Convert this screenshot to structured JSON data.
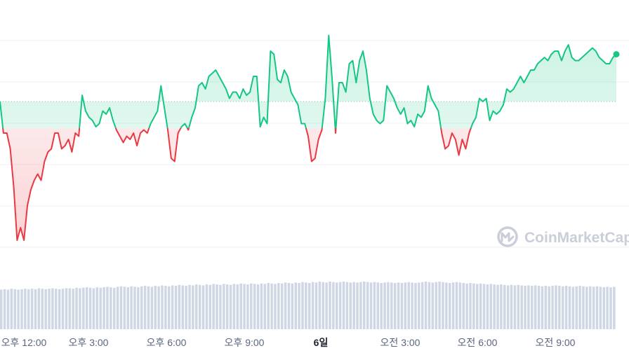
{
  "chart_data": {
    "type": "line",
    "baseline": 0,
    "ylim": [
      -5,
      3
    ],
    "grid": true,
    "x_tick_labels": [
      "오후 12:00",
      "오후 3:00",
      "오후 6:00",
      "오후 9:00",
      "6일",
      "오전 3:00",
      "오전 6:00",
      "오전 9:00"
    ],
    "x_tick_bold": [
      false,
      false,
      false,
      false,
      true,
      false,
      false,
      false
    ],
    "price": [
      0.0,
      -1.0,
      -1.0,
      -1.5,
      -2.7,
      -4.4,
      -4.0,
      -4.4,
      -3.3,
      -2.8,
      -2.5,
      -2.3,
      -2.5,
      -1.9,
      -1.6,
      -1.5,
      -1.0,
      -1.0,
      -1.5,
      -1.4,
      -1.2,
      -1.6,
      -1.0,
      -1.1,
      0.2,
      -0.3,
      -0.5,
      -0.6,
      -0.8,
      -0.7,
      -0.3,
      -0.4,
      -0.2,
      -0.6,
      -0.9,
      -1.1,
      -1.3,
      -1.1,
      -1.2,
      -1.0,
      -1.4,
      -1.0,
      -0.9,
      -1.0,
      -0.7,
      -0.5,
      -0.3,
      0.5,
      -0.2,
      -0.9,
      -1.8,
      -1.9,
      -1.0,
      -0.8,
      -0.7,
      -0.9,
      -0.5,
      -0.2,
      0.5,
      0.6,
      0.4,
      0.8,
      0.9,
      1.0,
      0.8,
      0.6,
      0.4,
      0.1,
      0.3,
      0.3,
      0.1,
      0.4,
      0.2,
      0.3,
      0.8,
      0.8,
      -0.8,
      -0.5,
      -0.7,
      1.6,
      1.5,
      0.7,
      0.6,
      1.0,
      0.8,
      0.3,
      0.1,
      -0.1,
      -0.7,
      -0.7,
      -1.1,
      -1.9,
      -1.8,
      -1.2,
      -0.9,
      0.1,
      2.1,
      0.7,
      -1.0,
      0.6,
      0.6,
      0.3,
      1.2,
      1.3,
      0.6,
      1.3,
      1.6,
      1.0,
      0.1,
      -0.4,
      -0.6,
      -0.7,
      -0.6,
      0.5,
      0.3,
      0.1,
      -0.2,
      -0.4,
      -0.2,
      -0.7,
      -0.6,
      -0.8,
      -0.4,
      -0.5,
      -0.3,
      0.5,
      0.1,
      -0.1,
      -0.3,
      -1.0,
      -1.5,
      -1.4,
      -1.0,
      -1.2,
      -1.7,
      -1.2,
      -1.5,
      -1.0,
      -0.7,
      -0.5,
      0.1,
      0.0,
      0.1,
      -0.6,
      -0.3,
      -0.4,
      -0.3,
      -0.1,
      0.4,
      0.3,
      0.4,
      0.6,
      0.8,
      0.6,
      0.8,
      1.0,
      1.0,
      1.2,
      1.3,
      1.4,
      1.3,
      1.5,
      1.6,
      1.6,
      1.3,
      1.6,
      1.8,
      1.4,
      1.3,
      1.3,
      1.4,
      1.5,
      1.6,
      1.7,
      1.6,
      1.4,
      1.3,
      1.2,
      1.2,
      1.4,
      1.5
    ],
    "volume": [
      0.83,
      0.84,
      0.83,
      0.85,
      0.84,
      0.83,
      0.84,
      0.85,
      0.84,
      0.85,
      0.84,
      0.86,
      0.85,
      0.84,
      0.85,
      0.86,
      0.85,
      0.84,
      0.85,
      0.86,
      0.86,
      0.85,
      0.87,
      0.86,
      0.87,
      0.88,
      0.87,
      0.86,
      0.88,
      0.87,
      0.88,
      0.89,
      0.88,
      0.87,
      0.89,
      0.9,
      0.89,
      0.88,
      0.9,
      0.89,
      0.88,
      0.9,
      0.91,
      0.9,
      0.89,
      0.91,
      0.9,
      0.92,
      0.91,
      0.9,
      0.92,
      0.91,
      0.93,
      0.92,
      0.91,
      0.93,
      0.92,
      0.94,
      0.93,
      0.92,
      0.94,
      0.93,
      0.95,
      0.94,
      0.93,
      0.95,
      0.94,
      0.93,
      0.95,
      0.94,
      0.96,
      0.95,
      0.94,
      0.96,
      0.95,
      0.94,
      0.96,
      0.95,
      0.97,
      0.96,
      0.95,
      0.97,
      0.96,
      0.98,
      0.97,
      0.96,
      0.98,
      0.97,
      0.99,
      0.98,
      0.97,
      0.99,
      0.98,
      1.0,
      0.99,
      0.98,
      1.0,
      0.99,
      0.98,
      0.99,
      1.0,
      0.99,
      0.98,
      0.99,
      0.98,
      0.99,
      1.0,
      0.99,
      0.98,
      0.99,
      0.98,
      0.97,
      0.98,
      0.99,
      0.98,
      0.97,
      0.98,
      0.97,
      0.98,
      0.99,
      0.98,
      0.97,
      0.98,
      0.99,
      1.0,
      0.99,
      0.98,
      0.99,
      1.0,
      0.99,
      0.98,
      0.97,
      0.98,
      0.99,
      0.98,
      0.97,
      0.96,
      0.97,
      0.96,
      0.95,
      0.96,
      0.95,
      0.94,
      0.95,
      0.94,
      0.93,
      0.94,
      0.93,
      0.92,
      0.93,
      0.92,
      0.93,
      0.92,
      0.91,
      0.92,
      0.91,
      0.92,
      0.91,
      0.9,
      0.91,
      0.9,
      0.91,
      0.92,
      0.91,
      0.9,
      0.91,
      0.9,
      0.89,
      0.9,
      0.91,
      0.9,
      0.89,
      0.9,
      0.89,
      0.9,
      0.89,
      0.88,
      0.89,
      0.88,
      0.89
    ]
  },
  "colors": {
    "up": "#16c784",
    "down": "#ea3943",
    "grid": "#eff2f5",
    "baseline": "#a6b0c3",
    "volume": "#cfd6e4",
    "axis_text": "#58667e"
  },
  "watermark": {
    "text": "CoinMarketCap",
    "icon": "coinmarketcap-logo-icon"
  }
}
